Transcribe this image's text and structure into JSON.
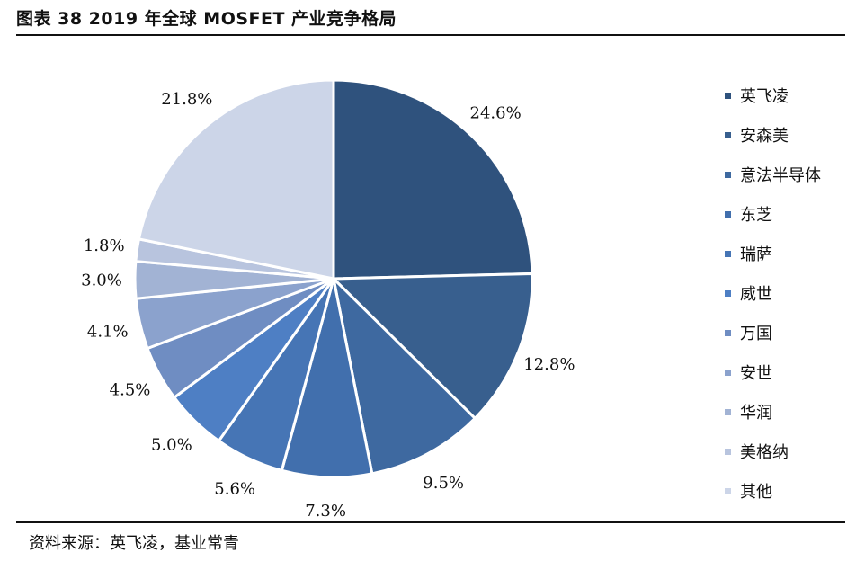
{
  "title": "图表 38 2019 年全球 MOSFET 产业竞争格局",
  "source": "资料来源：英飞凌，基业常青",
  "chart_data": {
    "type": "pie",
    "labels": [
      "英飞凌",
      "安森美",
      "意法半导体",
      "东芝",
      "瑞萨",
      "威世",
      "万国",
      "安世",
      "华润",
      "美格纳",
      "其他"
    ],
    "values": [
      24.6,
      12.8,
      9.5,
      7.3,
      5.6,
      5.0,
      4.5,
      4.1,
      3.0,
      1.8,
      21.8
    ],
    "value_labels": [
      "24.6%",
      "12.8%",
      "9.5%",
      "7.3%",
      "5.6%",
      "5.0%",
      "4.5%",
      "4.1%",
      "3.0%",
      "1.8%",
      "21.8%"
    ],
    "colors": [
      "#2f527d",
      "#385f8e",
      "#3e69a0",
      "#416fad",
      "#4675b5",
      "#4e7fc4",
      "#6f8dc2",
      "#8ba2cd",
      "#a2b3d4",
      "#b8c4de",
      "#ccd5e8"
    ],
    "legend_position": "right"
  }
}
